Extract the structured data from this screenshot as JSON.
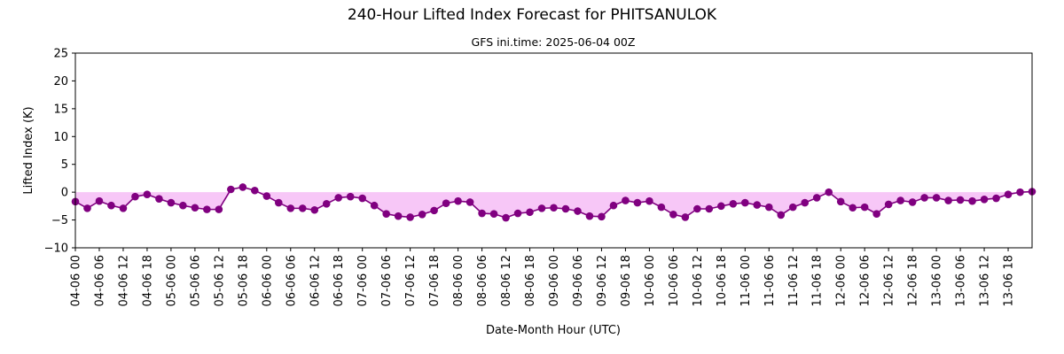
{
  "chart_data": {
    "type": "line",
    "title": "240-Hour Lifted Index Forecast for PHITSANULOK",
    "subtitle": "GFS ini.time: 2025-06-04 00Z",
    "xlabel": "Date-Month Hour (UTC)",
    "ylabel": "Lifted Index (K)",
    "ylim": [
      -10,
      25
    ],
    "yticks": [
      "25",
      "20",
      "15",
      "10",
      "5",
      "0",
      "−5",
      "−10"
    ],
    "ytick_values": [
      25,
      20,
      15,
      10,
      5,
      0,
      -5,
      -10
    ],
    "xticks": [
      "04-06 00",
      "04-06 06",
      "04-06 12",
      "04-06 18",
      "05-06 00",
      "05-06 06",
      "05-06 12",
      "05-06 18",
      "06-06 00",
      "06-06 06",
      "06-06 12",
      "06-06 18",
      "07-06 00",
      "07-06 06",
      "07-06 12",
      "07-06 18",
      "08-06 00",
      "08-06 06",
      "08-06 12",
      "08-06 18",
      "09-06 00",
      "09-06 06",
      "09-06 12",
      "09-06 18",
      "10-06 00",
      "10-06 06",
      "10-06 12",
      "10-06 18",
      "11-06 00",
      "11-06 06",
      "11-06 12",
      "11-06 18",
      "12-06 00",
      "12-06 06",
      "12-06 12",
      "12-06 18",
      "13-06 00",
      "13-06 06",
      "13-06 12",
      "13-06 18"
    ],
    "x_hours": [
      0,
      3,
      6,
      9,
      12,
      15,
      18,
      21,
      24,
      27,
      30,
      33,
      36,
      39,
      42,
      45,
      48,
      51,
      54,
      57,
      60,
      63,
      66,
      69,
      72,
      75,
      78,
      81,
      84,
      87,
      90,
      93,
      96,
      99,
      102,
      105,
      108,
      111,
      114,
      117,
      120,
      123,
      126,
      129,
      132,
      135,
      138,
      141,
      144,
      147,
      150,
      153,
      156,
      159,
      162,
      165,
      168,
      171,
      174,
      177,
      180,
      183,
      186,
      189,
      192,
      195,
      198,
      201,
      204,
      207,
      210,
      213,
      216,
      219,
      222,
      225,
      228,
      231,
      234,
      237,
      240
    ],
    "series": [
      {
        "values": [
          -1.7,
          -2.9,
          -1.6,
          -2.4,
          -2.9,
          -0.8,
          -0.4,
          -1.2,
          -1.9,
          -2.4,
          -2.8,
          -3.1,
          -3.1,
          0.5,
          0.9,
          0.3,
          -0.7,
          -1.9,
          -2.9,
          -2.9,
          -3.2,
          -2.1,
          -1.0,
          -0.8,
          -1.1,
          -2.4,
          -3.9,
          -4.3,
          -4.5,
          -4.0,
          -3.3,
          -2.0,
          -1.6,
          -1.8,
          -3.8,
          -3.9,
          -4.6,
          -3.8,
          -3.6,
          -2.9,
          -2.8,
          -3.0,
          -3.4,
          -4.3,
          -4.4,
          -2.4,
          -1.5,
          -1.9,
          -1.6,
          -2.7,
          -4.0,
          -4.5,
          -3.0,
          -3.0,
          -2.5,
          -2.1,
          -1.9,
          -2.3,
          -2.7,
          -4.1,
          -2.7,
          -1.9,
          -1.0,
          0.0,
          -1.7,
          -2.8,
          -2.7,
          -3.9,
          -2.2,
          -1.5,
          -1.8,
          -1.0,
          -1.0,
          -1.5,
          -1.4,
          -1.6,
          -1.3,
          -1.1,
          -0.4,
          0.0,
          0.1
        ]
      }
    ],
    "colors": {
      "line": "#800080",
      "fill": "#ee82ee",
      "fill_opacity": 0.45
    },
    "grid": false,
    "legend": "none"
  }
}
